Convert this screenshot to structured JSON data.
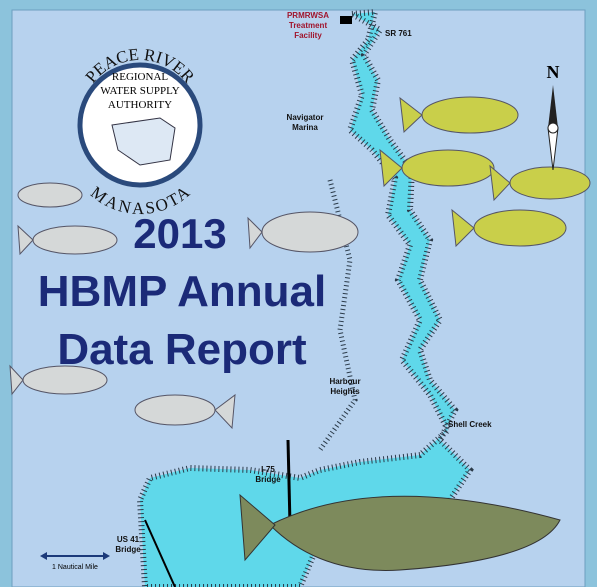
{
  "logo": {
    "arc_top": "PEACE RIVER",
    "lines": [
      "REGIONAL",
      "WATER SUPPLY",
      "AUTHORITY"
    ],
    "arc_bottom": "MANASOTA"
  },
  "title": {
    "year": "2013",
    "line1": "HBMP Annual",
    "line2": "Data Report"
  },
  "map_labels": {
    "facility": [
      "PRMRWSA",
      "Treatment",
      "Facility"
    ],
    "road": "SR 761",
    "marina": [
      "Navigator",
      "Marina"
    ],
    "harbour": [
      "Harbour",
      "Heights"
    ],
    "creek": "Shell Creek",
    "i75": [
      "I-75",
      "Bridge"
    ],
    "us41": [
      "US 41",
      "Bridge"
    ]
  },
  "compass": "N",
  "scale": "1 Nautical Mile"
}
